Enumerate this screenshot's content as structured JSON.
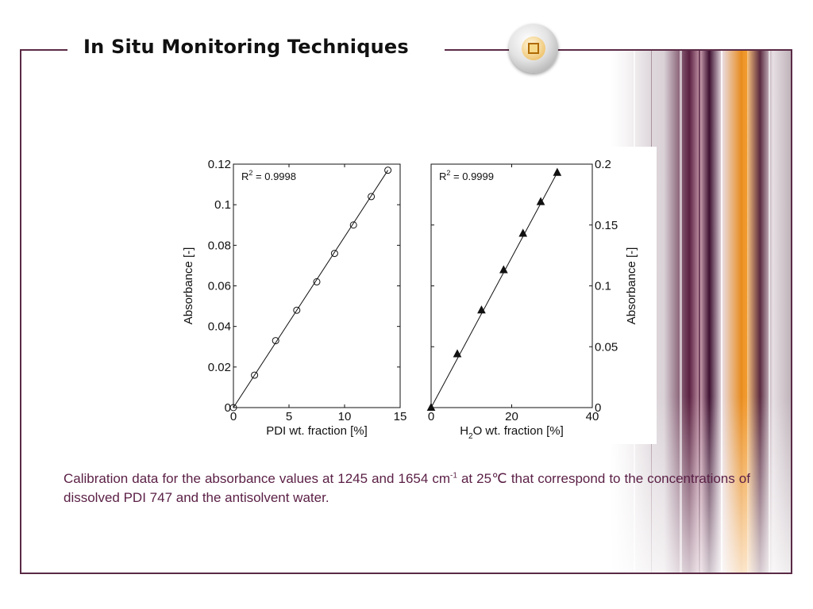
{
  "slide": {
    "title": "In Situ Monitoring Techniques",
    "caption": {
      "before_sup": "Calibration data for the absorbance values at 1245 and 1654 cm",
      "sup": "-1",
      "after_sup": " at 25℃ that correspond to the concentrations of dissolved PDI 747 and the antisolvent water."
    }
  },
  "colors": {
    "frame": "#5a2a45",
    "caption": "#5a1f45",
    "accent": "#e88a1a"
  },
  "icons": {
    "badge": "square-badge-icon"
  },
  "chart_data": [
    {
      "type": "scatter",
      "marker": "circle",
      "fit_line": true,
      "annotation": "R² = 0.9998",
      "annotation_base": "R",
      "annotation_sup": "2",
      "annotation_rest": " = 0.9998",
      "xlabel": "PDI wt. fraction [%]",
      "ylabel": "Absorbance [-]",
      "xlim": [
        0,
        15
      ],
      "ylim": [
        0,
        0.12
      ],
      "xticks": [
        "0",
        "5",
        "10",
        "15"
      ],
      "yticks": [
        "0",
        "0.02",
        "0.04",
        "0.06",
        "0.08",
        "0.1",
        "0.12"
      ],
      "yaxis_side": "left",
      "x": [
        0,
        1.9,
        3.8,
        5.7,
        7.5,
        9.1,
        10.8,
        12.4,
        13.9
      ],
      "y": [
        0,
        0.016,
        0.033,
        0.048,
        0.062,
        0.076,
        0.09,
        0.104,
        0.117
      ]
    },
    {
      "type": "scatter",
      "marker": "triangle",
      "fit_line": true,
      "annotation": "R² = 0.9999",
      "annotation_base": "R",
      "annotation_sup": "2",
      "annotation_rest": " = 0.9999",
      "xlabel": "H₂O wt. fraction [%]",
      "xlabel_base": "H",
      "xlabel_sub": "2",
      "xlabel_rest": "O wt. fraction [%]",
      "ylabel": "Absorbance [-]",
      "xlim": [
        0,
        40
      ],
      "ylim": [
        0,
        0.2
      ],
      "xticks": [
        "0",
        "20",
        "40"
      ],
      "yticks": [
        "0",
        "0.05",
        "0.1",
        "0.15",
        "0.2"
      ],
      "yaxis_side": "right",
      "x": [
        0,
        6.5,
        12.5,
        18.0,
        22.8,
        27.2,
        31.3
      ],
      "y": [
        0,
        0.044,
        0.08,
        0.113,
        0.143,
        0.169,
        0.193
      ]
    }
  ]
}
